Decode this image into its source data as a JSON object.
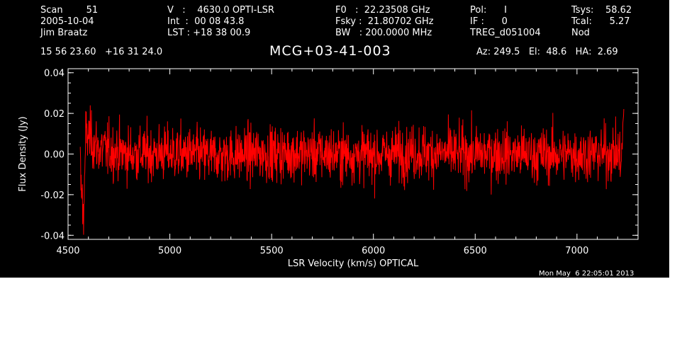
{
  "header": {
    "col1": [
      "Scan        51",
      "2005-10-04",
      "Jim Braatz"
    ],
    "col2": [
      "V   :    4630.0 OPTI-LSR",
      "Int  :  00 08 43.8",
      "LST : +18 38 00.9"
    ],
    "col3": [
      "F0   :  22.23508 GHz",
      "Fsky :  21.80702 GHz",
      "BW   : 200.0000 MHz"
    ],
    "col4": [
      "Pol:      I",
      "IF :      0",
      "TREG_d051004"
    ],
    "col5": [
      "Tsys:    58.62",
      "Tcal:      5.27",
      "Nod"
    ],
    "coords": "15 56 23.60   +16 31 24.0",
    "source": "MCG+03-41-003",
    "azel": "Az: 249.5   El:  48.6   HA:  2.69",
    "timestamp": "Mon May  6 22:05:01 2013"
  },
  "chart_data": {
    "type": "line",
    "xlabel": "LSR Velocity (km/s) OPTICAL",
    "ylabel": "Flux Density (Jy)",
    "xlim": [
      4500,
      7300
    ],
    "ylim": [
      -0.042,
      0.042
    ],
    "xticks": [
      "4500",
      "5000",
      "5500",
      "6000",
      "6500",
      "7000"
    ],
    "yticks": [
      "0.04",
      "0.02",
      "0.00",
      "-0.02",
      "-0.04"
    ],
    "series": [
      {
        "color": "#ff0000",
        "x_range": [
          4560,
          7230
        ],
        "description_noise_sigma": 0.009,
        "x": [
          4560,
          4575,
          4590,
          4650,
          4800,
          5000,
          5200,
          5400,
          5600,
          5800,
          6000,
          6200,
          6400,
          6600,
          6800,
          7000,
          7200,
          7220,
          7230
        ],
        "y": [
          -0.004,
          -0.037,
          0.02,
          0.005,
          0.0,
          0.001,
          -0.002,
          0.0,
          0.001,
          0.0,
          -0.001,
          0.002,
          0.0,
          0.001,
          -0.001,
          0.0,
          0.001,
          -0.005,
          0.026
        ]
      }
    ]
  }
}
